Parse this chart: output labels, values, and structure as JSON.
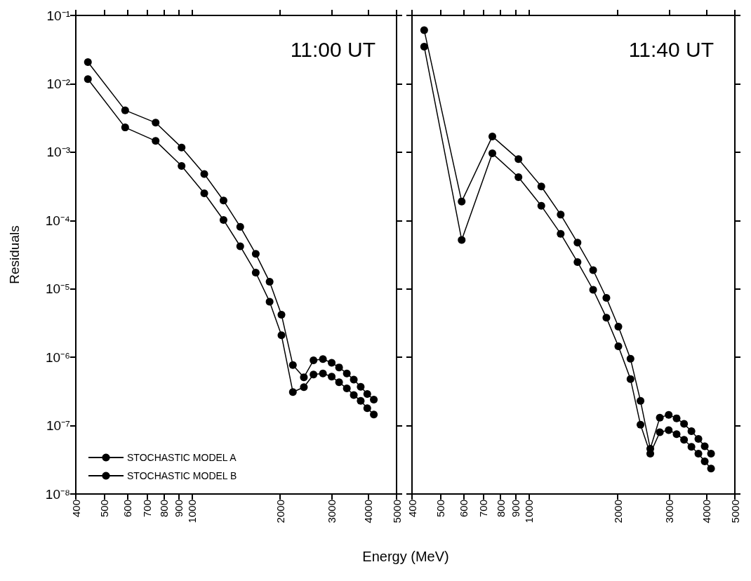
{
  "chart_data": [
    {
      "type": "line",
      "title": "11:00 UT",
      "xlabel": "Energy (MeV)",
      "ylabel": "Residuals",
      "log": "xy",
      "marker": "circle",
      "line_style": "solid",
      "legend": "bottom left",
      "grid": false,
      "x": [
        440,
        590,
        750,
        920,
        1100,
        1280,
        1460,
        1650,
        1840,
        2020,
        2210,
        2410,
        2600,
        2800,
        3000,
        3180,
        3380,
        3570,
        3770,
        3970,
        4180
      ],
      "series": [
        {
          "name": "STOCHASTIC MODEL A",
          "color": "#000000",
          "values": [
            0.0208,
            0.0041,
            0.0027,
            0.00117,
            0.00048,
            0.000196,
            8.1e-05,
            3.25e-05,
            1.27e-05,
            4.2e-06,
            7.7e-07,
            5.1e-07,
            9e-07,
            9.4e-07,
            8.3e-07,
            7.1e-07,
            5.8e-07,
            4.7e-07,
            3.7e-07,
            2.9e-07,
            2.4e-07
          ]
        },
        {
          "name": "STOCHASTIC MODEL B",
          "color": "#000000",
          "values": [
            0.0117,
            0.0023,
            0.00146,
            0.00063,
            0.00025,
            0.000102,
            4.2e-05,
            1.73e-05,
            6.5e-06,
            2.1e-06,
            3.1e-07,
            3.65e-07,
            5.6e-07,
            5.8e-07,
            5.2e-07,
            4.3e-07,
            3.5e-07,
            2.8e-07,
            2.3e-07,
            1.8e-07,
            1.45e-07
          ]
        }
      ],
      "xlim": [
        400,
        5000
      ],
      "xticks": [
        400,
        500,
        600,
        700,
        800,
        900,
        1000,
        2000,
        3000,
        4000,
        5000
      ],
      "ylim": [
        1e-08,
        0.1
      ],
      "yticks": [
        {
          "value": 1e-08,
          "label": "10⁻⁸"
        },
        {
          "value": 1e-07,
          "label": "10⁻⁷"
        },
        {
          "value": 1e-06,
          "label": "10⁻⁶"
        },
        {
          "value": 1e-05,
          "label": "10⁻⁵"
        },
        {
          "value": 0.0001,
          "label": "10⁻⁴"
        },
        {
          "value": 0.001,
          "label": "10⁻³"
        },
        {
          "value": 0.01,
          "label": "10⁻²"
        },
        {
          "value": 0.1,
          "label": "10⁻¹"
        }
      ]
    },
    {
      "type": "line",
      "title": "11:40 UT",
      "log": "xy",
      "marker": "circle",
      "line_style": "solid",
      "grid": false,
      "tick_labels": "x",
      "x": [
        440,
        590,
        750,
        920,
        1100,
        1280,
        1460,
        1650,
        1830,
        2010,
        2210,
        2390,
        2580,
        2780,
        2980,
        3170,
        3360,
        3560,
        3760,
        3950,
        4150
      ],
      "series": [
        {
          "color": "#000000",
          "values": [
            0.061,
            0.00019,
            0.0017,
            0.00079,
            0.000315,
            0.000122,
            4.75e-05,
            1.88e-05,
            7.4e-06,
            2.8e-06,
            9.5e-07,
            2.3e-07,
            4.6e-08,
            1.31e-07,
            1.44e-07,
            1.28e-07,
            1.06e-07,
            8.3e-08,
            6.4e-08,
            5e-08,
            3.9e-08
          ]
        },
        {
          "color": "#000000",
          "values": [
            0.035,
            5.2e-05,
            0.00096,
            0.00043,
            0.000164,
            6.4e-05,
            2.47e-05,
            9.7e-06,
            3.8e-06,
            1.45e-06,
            4.8e-07,
            1.03e-07,
            3.9e-08,
            8e-08,
            8.6e-08,
            7.5e-08,
            6.2e-08,
            4.9e-08,
            3.9e-08,
            3e-08,
            2.35e-08
          ]
        }
      ],
      "xlim": [
        400,
        5000
      ],
      "xticks": [
        400,
        500,
        600,
        700,
        800,
        900,
        1000,
        2000,
        3000,
        4000,
        5000
      ],
      "ylim": [
        1e-08,
        0.1
      ],
      "yticks": [
        {
          "value": 1e-08,
          "label": null
        },
        {
          "value": 1e-07,
          "label": null
        },
        {
          "value": 1e-06,
          "label": null
        },
        {
          "value": 1e-05,
          "label": null
        },
        {
          "value": 0.0001,
          "label": null
        },
        {
          "value": 0.001,
          "label": null
        },
        {
          "value": 0.01,
          "label": null
        },
        {
          "value": 0.1,
          "label": null
        }
      ]
    }
  ]
}
